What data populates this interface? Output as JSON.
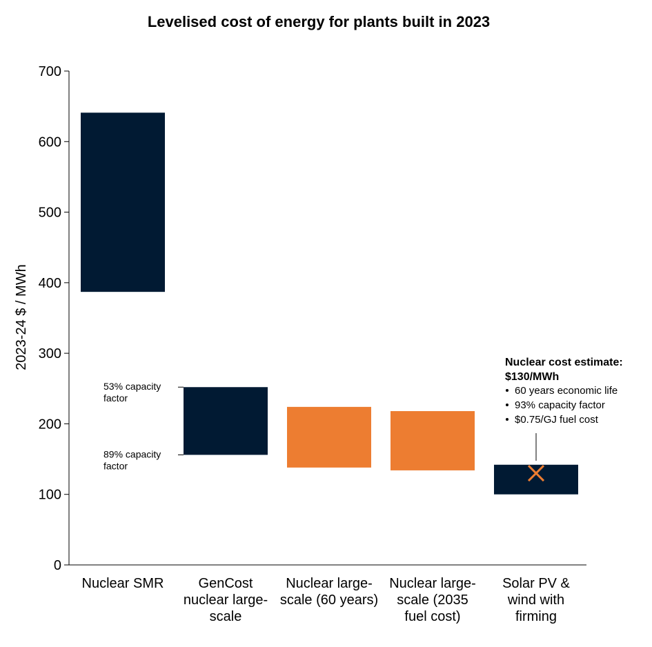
{
  "chart_data": {
    "type": "bar",
    "title": "Levelised cost of energy for plants built in 2023",
    "ylabel": "2023-24 $ / MWh",
    "ylim": [
      0,
      700
    ],
    "yticks": [
      0,
      100,
      200,
      300,
      400,
      500,
      600,
      700
    ],
    "grid": false,
    "categories": [
      [
        "Nuclear SMR"
      ],
      [
        "GenCost",
        "nuclear large-",
        "scale"
      ],
      [
        "Nuclear large-",
        "scale (60 years)"
      ],
      [
        "Nuclear large-",
        "scale (2035",
        "fuel cost)"
      ],
      [
        "Solar PV &",
        "wind with",
        "firming"
      ]
    ],
    "ranges": [
      {
        "low": 387,
        "high": 641,
        "color": "#011a33"
      },
      {
        "low": 156,
        "high": 252,
        "color": "#011a33"
      },
      {
        "low": 138,
        "high": 224,
        "color": "#ed7d31"
      },
      {
        "low": 134,
        "high": 218,
        "color": "#ed7d31"
      },
      {
        "low": 100,
        "high": 142,
        "color": "#011a33"
      }
    ],
    "capacity_labels": [
      {
        "lines": [
          "53% capacity",
          "factor"
        ],
        "value": 252
      },
      {
        "lines": [
          "89% capacity",
          "factor"
        ],
        "value": 156
      }
    ],
    "marker": {
      "category_index": 4,
      "value": 130,
      "color": "#ed7d31"
    },
    "annotation": {
      "heading": [
        "Nuclear cost estimate:",
        "$130/MWh"
      ],
      "bullets": [
        "60 years economic life",
        "93% capacity factor",
        "$0.75/GJ fuel cost"
      ]
    }
  }
}
